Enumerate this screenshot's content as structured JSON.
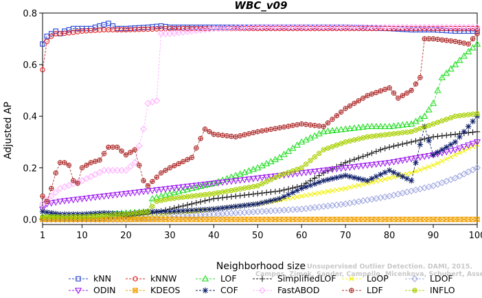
{
  "chart_data": {
    "type": "line",
    "title": "WBC_v09",
    "xlabel": "Neighborhood size",
    "ylabel": "Adjusted AP",
    "xlim": [
      1,
      100
    ],
    "ylim": [
      -0.02,
      0.8
    ],
    "xticks": [
      1,
      10,
      20,
      30,
      40,
      50,
      60,
      70,
      80,
      90,
      100
    ],
    "yticks": [
      0.0,
      0.2,
      0.4,
      0.6,
      0.8
    ],
    "xtick_labels": [
      "1",
      "10",
      "20",
      "30",
      "40",
      "50",
      "60",
      "70",
      "80",
      "90",
      "100"
    ],
    "ytick_labels": [
      "0.0",
      "0.2",
      "0.4",
      "0.6",
      "0.8"
    ],
    "grid": false,
    "legend_position": "bottom",
    "series": [
      {
        "name": "kNN",
        "color": "#1f3fd1",
        "marker": "square",
        "points": [
          [
            1,
            0.68
          ],
          [
            2,
            0.71
          ],
          [
            3,
            0.72
          ],
          [
            4,
            0.73
          ],
          [
            5,
            0.72
          ],
          [
            6,
            0.73
          ],
          [
            8,
            0.74
          ],
          [
            10,
            0.74
          ],
          [
            12,
            0.74
          ],
          [
            14,
            0.75
          ],
          [
            16,
            0.76
          ],
          [
            18,
            0.74
          ],
          [
            20,
            0.74
          ],
          [
            25,
            0.745
          ],
          [
            28,
            0.75
          ],
          [
            30,
            0.745
          ],
          [
            40,
            0.745
          ],
          [
            50,
            0.745
          ],
          [
            60,
            0.745
          ],
          [
            70,
            0.745
          ],
          [
            80,
            0.74
          ],
          [
            85,
            0.735
          ],
          [
            90,
            0.735
          ],
          [
            95,
            0.73
          ],
          [
            100,
            0.73
          ]
        ]
      },
      {
        "name": "kNNW",
        "color": "#e02020",
        "marker": "circle",
        "points": [
          [
            1,
            0.58
          ],
          [
            2,
            0.69
          ],
          [
            3,
            0.71
          ],
          [
            4,
            0.72
          ],
          [
            5,
            0.72
          ],
          [
            8,
            0.725
          ],
          [
            10,
            0.73
          ],
          [
            15,
            0.735
          ],
          [
            20,
            0.735
          ],
          [
            30,
            0.74
          ],
          [
            40,
            0.74
          ],
          [
            50,
            0.74
          ],
          [
            60,
            0.74
          ],
          [
            70,
            0.74
          ],
          [
            80,
            0.74
          ],
          [
            90,
            0.74
          ],
          [
            100,
            0.74
          ]
        ]
      },
      {
        "name": "LOF",
        "color": "#22dd22",
        "marker": "triangle",
        "points": [
          [
            1,
            0.01
          ],
          [
            5,
            0.01
          ],
          [
            10,
            0.015
          ],
          [
            15,
            0.02
          ],
          [
            20,
            0.025
          ],
          [
            25,
            0.03
          ],
          [
            26,
            0.08
          ],
          [
            30,
            0.1
          ],
          [
            35,
            0.12
          ],
          [
            40,
            0.14
          ],
          [
            45,
            0.17
          ],
          [
            50,
            0.2
          ],
          [
            55,
            0.24
          ],
          [
            60,
            0.3
          ],
          [
            65,
            0.34
          ],
          [
            70,
            0.35
          ],
          [
            75,
            0.36
          ],
          [
            80,
            0.36
          ],
          [
            85,
            0.37
          ],
          [
            88,
            0.4
          ],
          [
            90,
            0.45
          ],
          [
            92,
            0.55
          ],
          [
            95,
            0.6
          ],
          [
            98,
            0.65
          ],
          [
            100,
            0.68
          ]
        ]
      },
      {
        "name": "SimplifiedLOF",
        "color": "#111111",
        "marker": "plus",
        "points": [
          [
            1,
            0.0
          ],
          [
            10,
            0.0
          ],
          [
            20,
            0.01
          ],
          [
            25,
            0.02
          ],
          [
            30,
            0.04
          ],
          [
            35,
            0.06
          ],
          [
            40,
            0.08
          ],
          [
            45,
            0.09
          ],
          [
            50,
            0.1
          ],
          [
            55,
            0.11
          ],
          [
            60,
            0.13
          ],
          [
            65,
            0.18
          ],
          [
            70,
            0.22
          ],
          [
            75,
            0.25
          ],
          [
            78,
            0.27
          ],
          [
            80,
            0.28
          ],
          [
            85,
            0.3
          ],
          [
            90,
            0.32
          ],
          [
            95,
            0.33
          ],
          [
            100,
            0.34
          ]
        ]
      },
      {
        "name": "LoOP",
        "color": "#f0f000",
        "marker": "x",
        "points": [
          [
            1,
            0.0
          ],
          [
            20,
            0.0
          ],
          [
            30,
            0.02
          ],
          [
            40,
            0.04
          ],
          [
            50,
            0.06
          ],
          [
            60,
            0.09
          ],
          [
            70,
            0.12
          ],
          [
            80,
            0.16
          ],
          [
            85,
            0.18
          ],
          [
            90,
            0.21
          ],
          [
            95,
            0.25
          ],
          [
            100,
            0.29
          ]
        ]
      },
      {
        "name": "LDOF",
        "color": "#a0a8e0",
        "marker": "diamond",
        "points": [
          [
            1,
            0.0
          ],
          [
            20,
            0.0
          ],
          [
            30,
            0.01
          ],
          [
            40,
            0.02
          ],
          [
            50,
            0.03
          ],
          [
            60,
            0.04
          ],
          [
            70,
            0.06
          ],
          [
            80,
            0.09
          ],
          [
            85,
            0.11
          ],
          [
            90,
            0.13
          ],
          [
            95,
            0.16
          ],
          [
            100,
            0.2
          ]
        ]
      },
      {
        "name": "ODIN",
        "color": "#a020f0",
        "marker": "triangle-down",
        "points": [
          [
            1,
            0.04
          ],
          [
            2,
            0.06
          ],
          [
            5,
            0.07
          ],
          [
            10,
            0.08
          ],
          [
            15,
            0.09
          ],
          [
            20,
            0.1
          ],
          [
            25,
            0.11
          ],
          [
            30,
            0.12
          ],
          [
            40,
            0.14
          ],
          [
            50,
            0.16
          ],
          [
            60,
            0.18
          ],
          [
            70,
            0.2
          ],
          [
            80,
            0.22
          ],
          [
            90,
            0.25
          ],
          [
            95,
            0.27
          ],
          [
            100,
            0.3
          ]
        ]
      },
      {
        "name": "KDEOS",
        "color": "#f0a000",
        "marker": "square-x",
        "points": [
          [
            1,
            0.0
          ],
          [
            100,
            0.0
          ]
        ]
      },
      {
        "name": "COF",
        "color": "#10206a",
        "marker": "star",
        "points": [
          [
            1,
            0.03
          ],
          [
            5,
            0.02
          ],
          [
            10,
            0.02
          ],
          [
            15,
            0.025
          ],
          [
            20,
            0.02
          ],
          [
            25,
            0.03
          ],
          [
            30,
            0.03
          ],
          [
            40,
            0.04
          ],
          [
            50,
            0.06
          ],
          [
            55,
            0.08
          ],
          [
            60,
            0.12
          ],
          [
            65,
            0.15
          ],
          [
            70,
            0.17
          ],
          [
            75,
            0.15
          ],
          [
            80,
            0.19
          ],
          [
            85,
            0.15
          ],
          [
            88,
            0.36
          ],
          [
            90,
            0.25
          ],
          [
            95,
            0.3
          ],
          [
            100,
            0.4
          ]
        ]
      },
      {
        "name": "FastABOD",
        "color": "#ffb0ff",
        "marker": "diamond",
        "points": [
          [
            1,
            0.06
          ],
          [
            5,
            0.12
          ],
          [
            10,
            0.15
          ],
          [
            15,
            0.19
          ],
          [
            20,
            0.19
          ],
          [
            22,
            0.22
          ],
          [
            24,
            0.35
          ],
          [
            25,
            0.45
          ],
          [
            27,
            0.46
          ],
          [
            28,
            0.72
          ],
          [
            30,
            0.72
          ],
          [
            40,
            0.74
          ],
          [
            50,
            0.745
          ],
          [
            60,
            0.745
          ],
          [
            70,
            0.745
          ],
          [
            80,
            0.745
          ],
          [
            90,
            0.745
          ],
          [
            100,
            0.745
          ]
        ]
      },
      {
        "name": "LDF",
        "color": "#b03030",
        "marker": "circle-plus",
        "points": [
          [
            1,
            0.09
          ],
          [
            2,
            0.07
          ],
          [
            3,
            0.12
          ],
          [
            4,
            0.18
          ],
          [
            5,
            0.22
          ],
          [
            6,
            0.22
          ],
          [
            7,
            0.21
          ],
          [
            8,
            0.15
          ],
          [
            9,
            0.14
          ],
          [
            10,
            0.2
          ],
          [
            12,
            0.22
          ],
          [
            14,
            0.23
          ],
          [
            16,
            0.28
          ],
          [
            18,
            0.28
          ],
          [
            20,
            0.25
          ],
          [
            22,
            0.27
          ],
          [
            24,
            0.15
          ],
          [
            25,
            0.13
          ],
          [
            28,
            0.18
          ],
          [
            30,
            0.2
          ],
          [
            35,
            0.24
          ],
          [
            38,
            0.35
          ],
          [
            40,
            0.33
          ],
          [
            45,
            0.32
          ],
          [
            50,
            0.34
          ],
          [
            60,
            0.37
          ],
          [
            65,
            0.36
          ],
          [
            70,
            0.43
          ],
          [
            75,
            0.48
          ],
          [
            80,
            0.51
          ],
          [
            82,
            0.47
          ],
          [
            85,
            0.5
          ],
          [
            87,
            0.55
          ],
          [
            88,
            0.7
          ],
          [
            90,
            0.7
          ],
          [
            95,
            0.69
          ],
          [
            98,
            0.68
          ],
          [
            100,
            0.72
          ]
        ]
      },
      {
        "name": "INFLO",
        "color": "#a8d000",
        "marker": "circle-x",
        "points": [
          [
            1,
            0.01
          ],
          [
            10,
            0.01
          ],
          [
            20,
            0.02
          ],
          [
            25,
            0.03
          ],
          [
            27,
            0.07
          ],
          [
            30,
            0.08
          ],
          [
            40,
            0.1
          ],
          [
            50,
            0.13
          ],
          [
            55,
            0.17
          ],
          [
            60,
            0.2
          ],
          [
            65,
            0.27
          ],
          [
            70,
            0.3
          ],
          [
            75,
            0.32
          ],
          [
            80,
            0.33
          ],
          [
            85,
            0.34
          ],
          [
            90,
            0.37
          ],
          [
            95,
            0.4
          ],
          [
            100,
            0.41
          ]
        ]
      }
    ]
  },
  "legend": {
    "rows": [
      [
        "kNN",
        "kNNW",
        "LOF",
        "SimplifiedLOF",
        "LoOP",
        "LDOF"
      ],
      [
        "ODIN",
        "KDEOS",
        "COF",
        "FastABOD",
        "LDF",
        "INFLO"
      ]
    ]
  },
  "watermark": {
    "line1": "Unsupervised Outlier Detection. DAMI, 2015.",
    "line2": "Campos, Zimek, Sander, Campello, Micenkova, Schubert, Assent, Houle"
  }
}
